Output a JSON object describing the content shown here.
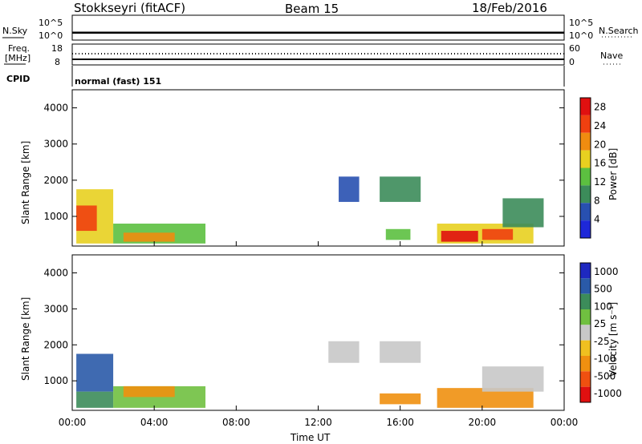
{
  "header": {
    "station": "Stokkseyri (fitACF)",
    "beam": "Beam 15",
    "date": "18/Feb/2016"
  },
  "top_panel": {
    "left_label": "N.Sky",
    "left_ticks": [
      "10^5",
      "10^0"
    ],
    "right_label": "N.Search",
    "right_ticks": [
      "10^5",
      "10^0"
    ]
  },
  "freq_panel": {
    "left_label_1": "Freq.",
    "left_label_2": "[MHz]",
    "left_ticks": [
      "18",
      "8"
    ],
    "right_label": "Nave",
    "right_ticks": [
      "60",
      "0"
    ],
    "cpid_label": "CPID",
    "cpid_value": "normal (fast) 151"
  },
  "x_axis": {
    "label": "Time UT",
    "ticks": [
      "00:00",
      "04:00",
      "08:00",
      "12:00",
      "16:00",
      "20:00",
      "00:00"
    ]
  },
  "colors": {
    "power": [
      "#1e28d8",
      "#2850b0",
      "#3c8c5a",
      "#5cc040",
      "#e8d020",
      "#f08c10",
      "#f04010",
      "#e01010"
    ],
    "velocity": [
      "#e01010",
      "#f05010",
      "#f09010",
      "#f0c020",
      "#c8c8c8",
      "#70c040",
      "#3c8c5a",
      "#2a5aa8",
      "#1e28c0"
    ]
  },
  "chart_data": [
    {
      "type": "heatmap",
      "title": "",
      "xlabel": "Time UT",
      "ylabel": "Slant Range [km]",
      "x_range_hours": [
        0,
        24
      ],
      "ylim_km": [
        180,
        4500
      ],
      "y_ticks": [
        "1000",
        "2000",
        "3000",
        "4000"
      ],
      "colorbar": {
        "label": "Power [dB]",
        "ticks": [
          "4",
          "8",
          "12",
          "16",
          "20",
          "24",
          "28"
        ],
        "range": [
          0,
          30
        ]
      },
      "regions": [
        {
          "t0": 0.2,
          "t1": 2.0,
          "r0": 250,
          "r1": 1750,
          "value": 16
        },
        {
          "t0": 0.2,
          "t1": 1.2,
          "r0": 600,
          "r1": 1300,
          "value": 26
        },
        {
          "t0": 2.0,
          "t1": 6.5,
          "r0": 250,
          "r1": 800,
          "value": 12
        },
        {
          "t0": 2.5,
          "t1": 5.0,
          "r0": 300,
          "r1": 550,
          "value": 22
        },
        {
          "t0": 13.0,
          "t1": 14.0,
          "r0": 1400,
          "r1": 2100,
          "value": 6
        },
        {
          "t0": 15.0,
          "t1": 17.0,
          "r0": 1400,
          "r1": 2100,
          "value": 10
        },
        {
          "t0": 15.3,
          "t1": 16.5,
          "r0": 350,
          "r1": 650,
          "value": 14
        },
        {
          "t0": 17.8,
          "t1": 22.5,
          "r0": 250,
          "r1": 800,
          "value": 18
        },
        {
          "t0": 18.0,
          "t1": 19.8,
          "r0": 300,
          "r1": 600,
          "value": 28
        },
        {
          "t0": 20.0,
          "t1": 21.5,
          "r0": 350,
          "r1": 650,
          "value": 26
        },
        {
          "t0": 21.0,
          "t1": 23.0,
          "r0": 700,
          "r1": 1500,
          "value": 8
        }
      ]
    },
    {
      "type": "heatmap",
      "title": "",
      "xlabel": "Time UT",
      "ylabel": "Slant Range [km]",
      "x_range_hours": [
        0,
        24
      ],
      "ylim_km": [
        180,
        4500
      ],
      "y_ticks": [
        "1000",
        "2000",
        "3000",
        "4000"
      ],
      "colorbar": {
        "label": "Velocity [m s⁻¹]",
        "ticks": [
          "1000",
          "500",
          "100",
          "25",
          "-25",
          "-100",
          "-500",
          "-1000"
        ]
      },
      "regions": [
        {
          "t0": 0.2,
          "t1": 2.0,
          "r0": 700,
          "r1": 1750,
          "value": 900
        },
        {
          "t0": 0.2,
          "t1": 2.0,
          "r0": 250,
          "r1": 700,
          "value": 150
        },
        {
          "t0": 2.0,
          "t1": 6.5,
          "r0": 250,
          "r1": 850,
          "value": 60
        },
        {
          "t0": 2.5,
          "t1": 5.0,
          "r0": 550,
          "r1": 850,
          "value": -150
        },
        {
          "t0": 12.5,
          "t1": 14.0,
          "r0": 1500,
          "r1": 2100,
          "value": 0
        },
        {
          "t0": 15.0,
          "t1": 17.0,
          "r0": 1500,
          "r1": 2100,
          "value": 0
        },
        {
          "t0": 15.0,
          "t1": 17.0,
          "r0": 350,
          "r1": 650,
          "value": -120
        },
        {
          "t0": 17.8,
          "t1": 22.5,
          "r0": 250,
          "r1": 800,
          "value": -150
        },
        {
          "t0": 20.0,
          "t1": 23.0,
          "r0": 700,
          "r1": 1400,
          "value": 0
        }
      ]
    }
  ]
}
